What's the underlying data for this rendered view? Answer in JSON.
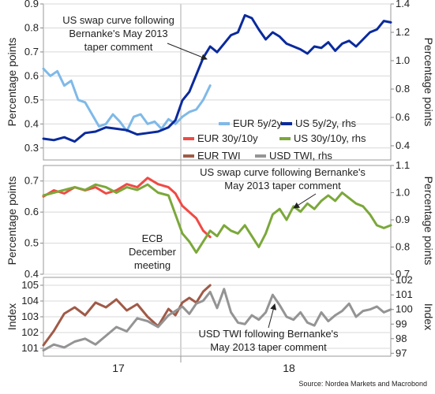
{
  "chart_data": [
    {
      "type": "line",
      "panel": "top",
      "ylabel_left": "Percentage points",
      "ylabel_right": "Percentage points",
      "ylim_left": [
        0.25,
        0.9
      ],
      "ylim_right": [
        0.3,
        1.4
      ],
      "yticks_left": [
        0.3,
        0.4,
        0.5,
        0.6,
        0.7,
        0.8,
        0.9
      ],
      "yticks_right": [
        0.4,
        0.6,
        0.8,
        1.0,
        1.2,
        1.4
      ],
      "annotation": "US swap curve following Bernanke's May 2013 taper comment",
      "legend_position": "lower-right",
      "series": [
        {
          "name": "EUR 5y/2y",
          "axis": "left",
          "color": "#7fb9e8",
          "x": [
            0,
            0.02,
            0.04,
            0.06,
            0.08,
            0.1,
            0.12,
            0.14,
            0.16,
            0.18,
            0.2,
            0.22,
            0.24,
            0.26,
            0.28,
            0.3,
            0.32,
            0.34,
            0.36,
            0.38,
            0.4,
            0.42,
            0.44,
            0.46,
            0.48
          ],
          "values": [
            0.63,
            0.6,
            0.62,
            0.56,
            0.58,
            0.5,
            0.49,
            0.44,
            0.39,
            0.4,
            0.44,
            0.41,
            0.37,
            0.43,
            0.44,
            0.4,
            0.41,
            0.38,
            0.42,
            0.4,
            0.43,
            0.45,
            0.46,
            0.5,
            0.56
          ]
        },
        {
          "name": "US 5y/2y, rhs",
          "axis": "right",
          "color": "#0a2a9c",
          "x": [
            0,
            0.03,
            0.06,
            0.09,
            0.12,
            0.15,
            0.18,
            0.21,
            0.24,
            0.27,
            0.3,
            0.33,
            0.36,
            0.38,
            0.4,
            0.42,
            0.44,
            0.46,
            0.48,
            0.5,
            0.52,
            0.54,
            0.56,
            0.58,
            0.6,
            0.62,
            0.64,
            0.66,
            0.68,
            0.7,
            0.72,
            0.74,
            0.76,
            0.78,
            0.8,
            0.82,
            0.84,
            0.86,
            0.88,
            0.9,
            0.92,
            0.94,
            0.96,
            0.98,
            1.0
          ],
          "values": [
            0.45,
            0.44,
            0.46,
            0.43,
            0.49,
            0.5,
            0.53,
            0.52,
            0.51,
            0.48,
            0.49,
            0.5,
            0.53,
            0.58,
            0.72,
            0.78,
            0.9,
            1.02,
            1.1,
            1.06,
            1.12,
            1.18,
            1.2,
            1.32,
            1.3,
            1.22,
            1.15,
            1.2,
            1.17,
            1.12,
            1.1,
            1.08,
            1.05,
            1.1,
            1.09,
            1.13,
            1.07,
            1.12,
            1.14,
            1.1,
            1.15,
            1.2,
            1.22,
            1.28,
            1.27
          ]
        }
      ]
    },
    {
      "type": "line",
      "panel": "middle",
      "ylabel_left": "Percentage points",
      "ylabel_right": "Percentage points",
      "ylim_left": [
        0.4,
        0.75
      ],
      "ylim_right": [
        0.7,
        1.1
      ],
      "yticks_left": [
        0.4,
        0.5,
        0.6,
        0.7
      ],
      "yticks_right": [
        0.7,
        0.8,
        0.9,
        1.0,
        1.1
      ],
      "annotation": "US swap curve following Bernanke's May 2013 taper comment",
      "annotation2": "ECB December meeting",
      "legend_position": "top-right",
      "series": [
        {
          "name": "EUR 30y/10y",
          "axis": "left",
          "color": "#ef4a45",
          "x": [
            0,
            0.03,
            0.06,
            0.09,
            0.12,
            0.15,
            0.18,
            0.21,
            0.24,
            0.27,
            0.3,
            0.33,
            0.36,
            0.38,
            0.4,
            0.42,
            0.44,
            0.46,
            0.48
          ],
          "values": [
            0.65,
            0.67,
            0.66,
            0.68,
            0.67,
            0.68,
            0.66,
            0.67,
            0.69,
            0.68,
            0.71,
            0.69,
            0.68,
            0.66,
            0.62,
            0.6,
            0.58,
            0.54,
            0.52
          ]
        },
        {
          "name": "US 30y/10y, rhs",
          "axis": "right",
          "color": "#7ba83a",
          "x": [
            0,
            0.03,
            0.06,
            0.09,
            0.12,
            0.15,
            0.18,
            0.21,
            0.24,
            0.27,
            0.3,
            0.33,
            0.36,
            0.38,
            0.4,
            0.42,
            0.44,
            0.46,
            0.48,
            0.5,
            0.52,
            0.54,
            0.56,
            0.58,
            0.6,
            0.62,
            0.64,
            0.66,
            0.68,
            0.7,
            0.72,
            0.74,
            0.76,
            0.78,
            0.8,
            0.82,
            0.84,
            0.86,
            0.88,
            0.9,
            0.92,
            0.94,
            0.96,
            0.98,
            1.0
          ],
          "values": [
            0.99,
            1.0,
            1.01,
            1.02,
            1.01,
            1.03,
            1.02,
            1.0,
            1.02,
            1.01,
            1.03,
            1.0,
            0.99,
            0.92,
            0.85,
            0.82,
            0.78,
            0.82,
            0.86,
            0.84,
            0.88,
            0.86,
            0.85,
            0.88,
            0.84,
            0.8,
            0.85,
            0.92,
            0.94,
            0.9,
            0.95,
            0.93,
            0.96,
            0.94,
            0.97,
            0.99,
            0.97,
            1.0,
            0.98,
            0.96,
            0.95,
            0.92,
            0.88,
            0.87,
            0.88
          ]
        }
      ]
    },
    {
      "type": "line",
      "panel": "bottom",
      "ylabel_left": "Index",
      "ylabel_right": "Index",
      "ylim_left": [
        100.5,
        105.5
      ],
      "ylim_right": [
        96.8,
        102.2
      ],
      "yticks_left": [
        101,
        102,
        103,
        104,
        105
      ],
      "yticks_right": [
        97,
        98,
        99,
        100,
        101,
        102
      ],
      "annotation": "USD TWI following Bernanke's May 2013 taper comment",
      "legend_position": "top-right",
      "series": [
        {
          "name": "EUR TWI",
          "axis": "left",
          "color": "#a05a47",
          "x": [
            0,
            0.03,
            0.06,
            0.09,
            0.12,
            0.15,
            0.18,
            0.21,
            0.24,
            0.27,
            0.3,
            0.33,
            0.36,
            0.38,
            0.4,
            0.42,
            0.44,
            0.46,
            0.48
          ],
          "values": [
            101.2,
            102.1,
            103.2,
            103.6,
            103.1,
            103.9,
            103.6,
            104.1,
            103.4,
            103.8,
            103.0,
            102.4,
            103.5,
            103.1,
            103.9,
            104.2,
            103.9,
            104.6,
            105.0
          ]
        },
        {
          "name": "USD TWI, rhs",
          "axis": "right",
          "color": "#949494",
          "x": [
            0,
            0.03,
            0.06,
            0.09,
            0.12,
            0.15,
            0.18,
            0.21,
            0.24,
            0.27,
            0.3,
            0.33,
            0.36,
            0.38,
            0.4,
            0.42,
            0.44,
            0.46,
            0.48,
            0.5,
            0.52,
            0.54,
            0.56,
            0.58,
            0.6,
            0.62,
            0.64,
            0.66,
            0.68,
            0.7,
            0.72,
            0.74,
            0.76,
            0.78,
            0.8,
            0.82,
            0.84,
            0.86,
            0.88,
            0.9,
            0.92,
            0.94,
            0.96,
            0.98,
            1.0
          ],
          "values": [
            97.2,
            97.6,
            97.4,
            97.8,
            98.0,
            97.6,
            98.2,
            98.8,
            98.5,
            99.4,
            99.2,
            98.8,
            99.6,
            99.9,
            100.2,
            99.7,
            100.4,
            100.6,
            101.2,
            100.1,
            101.4,
            99.8,
            99.1,
            99.0,
            99.6,
            99.3,
            99.8,
            101.0,
            100.3,
            99.5,
            99.3,
            99.8,
            99.1,
            98.9,
            99.8,
            99.2,
            99.6,
            99.9,
            100.4,
            99.5,
            99.9,
            100.0,
            100.2,
            99.8,
            100.0
          ]
        }
      ]
    }
  ],
  "xaxis": {
    "categories": [
      "17",
      "18"
    ],
    "ecb_line_at": 0.38
  },
  "texts": {
    "top_annotation": [
      "US swap curve following",
      "Bernanke's May 2013",
      "taper comment"
    ],
    "mid_annotation": [
      "US swap curve following Bernanke's",
      "May 2013 taper comment"
    ],
    "ecb_annotation": [
      "ECB",
      "December",
      "meeting"
    ],
    "bot_annotation": [
      "USD TWI following Bernanke's",
      "May 2013 taper comment"
    ],
    "source": "Source: Nordea Markets and Macrobond"
  }
}
